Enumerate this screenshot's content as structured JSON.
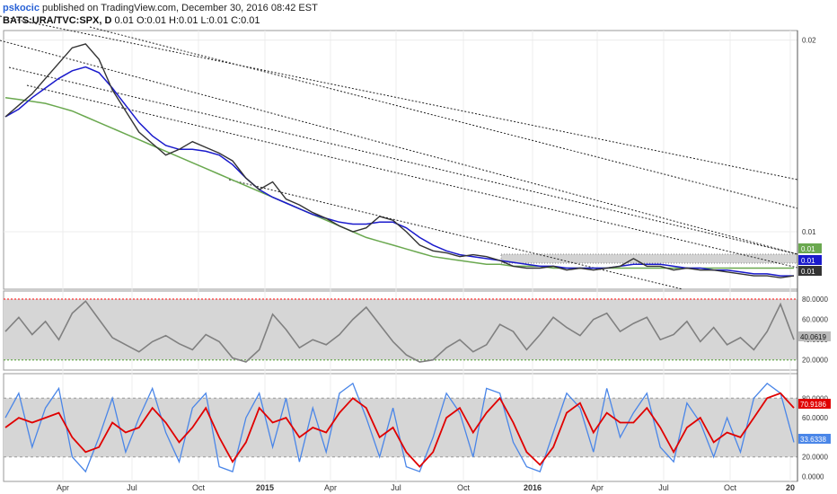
{
  "header": {
    "author": "pskocic",
    "published": "published on TradingView.com, December 30, 2016 08:42 EST",
    "symbol_line": "BATS:URA/TVC:SPX, D",
    "ohlc": "0.01 O:0.01 H:0.01 L:0.01 C:0.01"
  },
  "colors": {
    "price": "#333333",
    "ma_fast": "#1a1acc",
    "ma_slow": "#6aa84f",
    "rsi": "#808080",
    "stoch_k": "#4a86e8",
    "stoch_d": "#e00000",
    "band_fill": "#d6d6d6",
    "red_level": "#ff3333",
    "green_level": "#6aa84f"
  },
  "chart_data": [
    {
      "type": "line",
      "panel": "price",
      "title": "",
      "x_ticks": [
        "Apr",
        "Jul",
        "Oct",
        "2015",
        "Apr",
        "Jul",
        "Oct",
        "2016",
        "Apr",
        "Jul",
        "Oct",
        "20"
      ],
      "y_ticks": [
        "0.02",
        "0.01"
      ],
      "grid": true,
      "series": [
        {
          "key": "price",
          "values": [
            0.016,
            0.0166,
            0.0172,
            0.018,
            0.0188,
            0.0196,
            0.0198,
            0.019,
            0.0174,
            0.0163,
            0.0152,
            0.0146,
            0.014,
            0.0143,
            0.0147,
            0.0144,
            0.0141,
            0.0137,
            0.0128,
            0.0122,
            0.0126,
            0.0117,
            0.0114,
            0.011,
            0.0107,
            0.0103,
            0.01,
            0.0102,
            0.0108,
            0.0106,
            0.01,
            0.0093,
            0.009,
            0.0089,
            0.0087,
            0.0088,
            0.0087,
            0.0085,
            0.0082,
            0.0081,
            0.0081,
            0.0082,
            0.008,
            0.0081,
            0.008,
            0.0081,
            0.0082,
            0.0086,
            0.0082,
            0.0082,
            0.008,
            0.0081,
            0.008,
            0.008,
            0.0079,
            0.0078,
            0.0077,
            0.0077,
            0.0076,
            0.0077
          ]
        },
        {
          "key": "ma_fast",
          "values": [
            0.016,
            0.0164,
            0.017,
            0.0175,
            0.018,
            0.0184,
            0.0186,
            0.0183,
            0.0175,
            0.0166,
            0.0157,
            0.015,
            0.0145,
            0.0143,
            0.0143,
            0.0142,
            0.014,
            0.0135,
            0.0128,
            0.0122,
            0.0118,
            0.0115,
            0.0112,
            0.0109,
            0.0107,
            0.0105,
            0.0104,
            0.0104,
            0.0105,
            0.0105,
            0.0102,
            0.0097,
            0.0093,
            0.009,
            0.0088,
            0.0087,
            0.0086,
            0.0085,
            0.0084,
            0.0083,
            0.0082,
            0.0082,
            0.0081,
            0.0081,
            0.0081,
            0.0081,
            0.0082,
            0.0083,
            0.0083,
            0.0083,
            0.0082,
            0.0081,
            0.0081,
            0.008,
            0.008,
            0.0079,
            0.0078,
            0.0078,
            0.0077,
            0.0077
          ]
        },
        {
          "key": "ma_slow",
          "values": [
            0.017,
            0.0169,
            0.0168,
            0.0167,
            0.0165,
            0.0163,
            0.016,
            0.0157,
            0.0154,
            0.0151,
            0.0148,
            0.0145,
            0.0142,
            0.0139,
            0.0136,
            0.0133,
            0.013,
            0.0127,
            0.0124,
            0.0121,
            0.0118,
            0.0115,
            0.0112,
            0.0109,
            0.0106,
            0.0103,
            0.01,
            0.0097,
            0.0095,
            0.0093,
            0.0091,
            0.0089,
            0.0087,
            0.0086,
            0.0085,
            0.0084,
            0.0083,
            0.0083,
            0.0082,
            0.0082,
            0.0082,
            0.0081,
            0.0081,
            0.0081,
            0.0081,
            0.0081,
            0.0081,
            0.0081,
            0.0081,
            0.0081,
            0.0081,
            0.0081,
            0.0081,
            0.0081,
            0.0081,
            0.0081,
            0.0081,
            0.0081,
            0.0081,
            0.0081
          ]
        }
      ],
      "last_value_labels": [
        "0.01",
        "0.01",
        "0.01"
      ]
    },
    {
      "type": "line",
      "panel": "rsi",
      "y_ticks": [
        "80.0000",
        "60.0000",
        "40.0000",
        "20.0000"
      ],
      "band": [
        20,
        80
      ],
      "values": [
        48,
        62,
        45,
        58,
        40,
        66,
        78,
        60,
        42,
        35,
        28,
        38,
        44,
        36,
        30,
        45,
        38,
        22,
        18,
        30,
        65,
        50,
        32,
        40,
        35,
        45,
        60,
        72,
        55,
        38,
        25,
        18,
        20,
        32,
        40,
        28,
        35,
        55,
        48,
        30,
        45,
        62,
        52,
        44,
        60,
        66,
        48,
        56,
        62,
        40,
        45,
        58,
        38,
        52,
        35,
        42,
        30,
        48,
        75,
        40
      ],
      "last_value_label": "40.0619"
    },
    {
      "type": "line",
      "panel": "stochastic",
      "y_ticks": [
        "80.0000",
        "60.0000",
        "40.0000",
        "20.0000",
        "0.0000"
      ],
      "band": [
        20,
        80
      ],
      "series": [
        {
          "key": "stoch_k",
          "values": [
            60,
            85,
            30,
            70,
            90,
            20,
            5,
            40,
            80,
            25,
            60,
            90,
            45,
            15,
            70,
            85,
            10,
            5,
            60,
            85,
            30,
            80,
            15,
            70,
            25,
            85,
            95,
            60,
            20,
            70,
            10,
            5,
            40,
            85,
            65,
            20,
            90,
            85,
            35,
            10,
            5,
            45,
            85,
            70,
            25,
            90,
            40,
            65,
            85,
            30,
            15,
            75,
            55,
            20,
            60,
            25,
            80,
            95,
            85,
            35
          ]
        },
        {
          "key": "stoch_d",
          "values": [
            50,
            60,
            55,
            60,
            65,
            40,
            25,
            30,
            55,
            45,
            50,
            70,
            55,
            35,
            50,
            70,
            40,
            15,
            35,
            70,
            55,
            60,
            40,
            50,
            45,
            65,
            80,
            70,
            40,
            50,
            25,
            10,
            25,
            60,
            70,
            45,
            65,
            80,
            55,
            25,
            12,
            30,
            65,
            75,
            45,
            65,
            55,
            55,
            70,
            50,
            25,
            50,
            60,
            35,
            45,
            40,
            60,
            80,
            85,
            70
          ]
        }
      ],
      "last_value_labels": [
        "70.9186",
        "33.6338"
      ]
    }
  ]
}
